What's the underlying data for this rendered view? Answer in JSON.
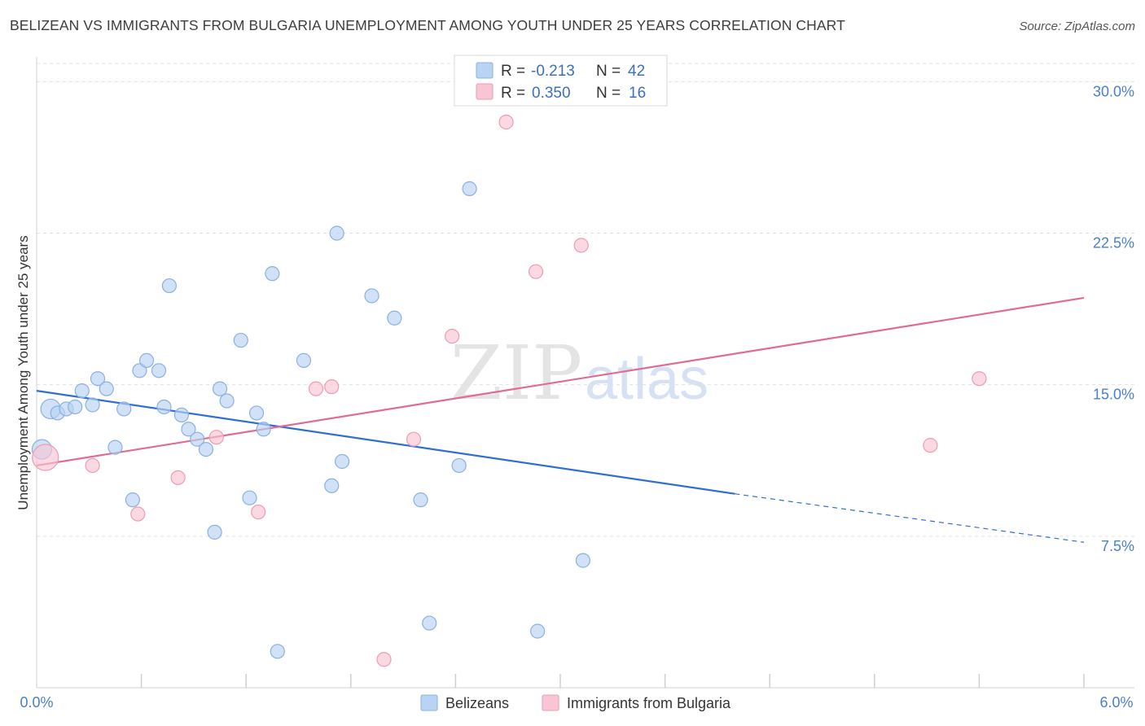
{
  "title": "BELIZEAN VS IMMIGRANTS FROM BULGARIA UNEMPLOYMENT AMONG YOUTH UNDER 25 YEARS CORRELATION CHART",
  "source": "Source: ZipAtlas.com",
  "watermark": {
    "zip": "ZIP",
    "atlas": "atlas"
  },
  "colors": {
    "blue_fill": "#b9d3f3",
    "blue_stroke": "#8ab0e3",
    "blue_line": "#2f6fd0",
    "pink_fill": "#f8c5d4",
    "pink_stroke": "#ee9bb4",
    "pink_line": "#e06b93",
    "tick_text": "#4a7fcf",
    "grid": "#e0e0e0"
  },
  "legend": {
    "row1": {
      "r_label": "R =",
      "r_value": "-0.213",
      "n_label": "N =",
      "n_value": "42"
    },
    "row2": {
      "r_label": "R =",
      "r_value": "0.350",
      "n_label": "N =",
      "n_value": "16"
    }
  },
  "bottom_legend": {
    "series1": "Belizeans",
    "series2": "Immigrants from Bulgaria"
  },
  "chart_data": {
    "type": "scatter",
    "title": "BELIZEAN VS IMMIGRANTS FROM BULGARIA UNEMPLOYMENT AMONG YOUTH UNDER 25 YEARS CORRELATION CHART",
    "xlabel": "",
    "ylabel": "Unemployment Among Youth under 25 years",
    "xlim": [
      0,
      6
    ],
    "ylim": [
      0,
      30.9
    ],
    "x_tick_labels": [
      "0.0%",
      "6.0%"
    ],
    "y_ticks": [
      7.5,
      15.0,
      22.5,
      30.0
    ],
    "y_tick_labels": [
      "7.5%",
      "15.0%",
      "22.5%",
      "30.0%"
    ],
    "series": [
      {
        "name": "Belizeans",
        "r": -0.213,
        "n": 42,
        "trend": {
          "x0": 0,
          "y0": 14.7,
          "x1": 4.0,
          "y1": 9.6,
          "dashed_to_x": 6.0,
          "dashed_to_y": 7.2
        },
        "points": [
          {
            "x": 0.03,
            "y": 11.8,
            "big": true
          },
          {
            "x": 0.08,
            "y": 13.8,
            "big": true
          },
          {
            "x": 0.12,
            "y": 13.6
          },
          {
            "x": 0.17,
            "y": 13.8
          },
          {
            "x": 0.22,
            "y": 13.9
          },
          {
            "x": 0.26,
            "y": 14.7
          },
          {
            "x": 0.32,
            "y": 14.0
          },
          {
            "x": 0.35,
            "y": 15.3
          },
          {
            "x": 0.4,
            "y": 14.8
          },
          {
            "x": 0.45,
            "y": 11.9
          },
          {
            "x": 0.5,
            "y": 13.8
          },
          {
            "x": 0.55,
            "y": 9.3
          },
          {
            "x": 0.59,
            "y": 15.7
          },
          {
            "x": 0.63,
            "y": 16.2
          },
          {
            "x": 0.7,
            "y": 15.7
          },
          {
            "x": 0.73,
            "y": 13.9
          },
          {
            "x": 0.76,
            "y": 19.9
          },
          {
            "x": 0.83,
            "y": 13.5
          },
          {
            "x": 0.87,
            "y": 12.8
          },
          {
            "x": 0.92,
            "y": 12.3
          },
          {
            "x": 0.97,
            "y": 11.8
          },
          {
            "x": 1.02,
            "y": 7.7
          },
          {
            "x": 1.05,
            "y": 14.8
          },
          {
            "x": 1.09,
            "y": 14.2
          },
          {
            "x": 1.17,
            "y": 17.2
          },
          {
            "x": 1.22,
            "y": 9.4
          },
          {
            "x": 1.26,
            "y": 13.6
          },
          {
            "x": 1.3,
            "y": 12.8
          },
          {
            "x": 1.35,
            "y": 20.5
          },
          {
            "x": 1.38,
            "y": 1.8
          },
          {
            "x": 1.53,
            "y": 16.2
          },
          {
            "x": 1.69,
            "y": 10.0
          },
          {
            "x": 1.72,
            "y": 22.5
          },
          {
            "x": 1.75,
            "y": 11.2
          },
          {
            "x": 1.92,
            "y": 19.4
          },
          {
            "x": 2.05,
            "y": 18.3
          },
          {
            "x": 2.2,
            "y": 9.3
          },
          {
            "x": 2.25,
            "y": 3.2
          },
          {
            "x": 2.42,
            "y": 11.0
          },
          {
            "x": 2.48,
            "y": 24.7
          },
          {
            "x": 2.87,
            "y": 2.8
          },
          {
            "x": 3.13,
            "y": 6.3
          }
        ]
      },
      {
        "name": "Immigrants from Bulgaria",
        "r": 0.35,
        "n": 16,
        "trend": {
          "x0": 0,
          "y0": 11.0,
          "x1": 6.0,
          "y1": 19.3
        },
        "points": [
          {
            "x": 0.05,
            "y": 11.4,
            "big": true
          },
          {
            "x": 0.32,
            "y": 11.0
          },
          {
            "x": 0.58,
            "y": 8.6
          },
          {
            "x": 0.81,
            "y": 10.4
          },
          {
            "x": 1.03,
            "y": 12.4
          },
          {
            "x": 1.27,
            "y": 8.7
          },
          {
            "x": 1.6,
            "y": 14.8
          },
          {
            "x": 1.69,
            "y": 14.9
          },
          {
            "x": 1.99,
            "y": 1.4
          },
          {
            "x": 2.16,
            "y": 12.3
          },
          {
            "x": 2.38,
            "y": 17.4
          },
          {
            "x": 2.69,
            "y": 28.0
          },
          {
            "x": 2.86,
            "y": 20.6
          },
          {
            "x": 3.12,
            "y": 21.9
          },
          {
            "x": 5.12,
            "y": 12.0
          },
          {
            "x": 5.4,
            "y": 15.3
          }
        ]
      }
    ]
  }
}
